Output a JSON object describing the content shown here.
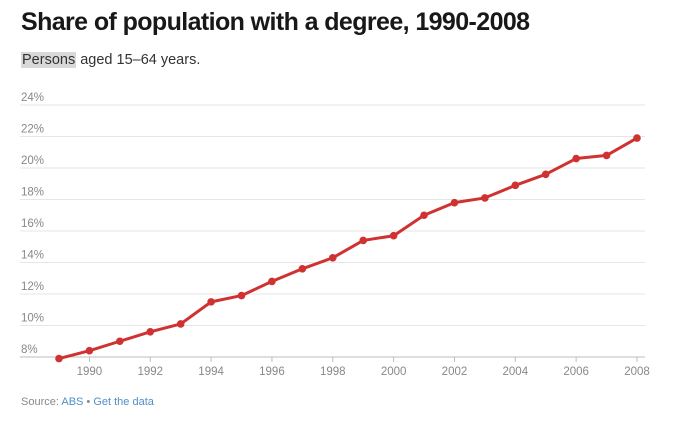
{
  "title": "Share of population with a degree, 1990-2008",
  "subtitle": {
    "highlight": "Persons",
    "rest": " aged 15–64 years."
  },
  "footer": {
    "source_prefix": "Source: ",
    "source_link": "ABS",
    "separator": " • ",
    "data_link": "Get the data"
  },
  "colors": {
    "line": "#d03131",
    "grid": "#e6e6e6",
    "axis": "#bdbdbd",
    "tick_text": "#888888",
    "link": "#4f8fc6"
  },
  "chart_data": {
    "type": "line",
    "title": "Share of population with a degree, 1990-2008",
    "subtitle": "Persons aged 15–64 years.",
    "xlabel": "",
    "ylabel": "",
    "x": [
      1989,
      1990,
      1991,
      1992,
      1993,
      1994,
      1995,
      1996,
      1997,
      1998,
      1999,
      2000,
      2001,
      2002,
      2003,
      2004,
      2005,
      2006,
      2007,
      2008
    ],
    "series": [
      {
        "name": "Persons",
        "values": [
          7.9,
          8.4,
          9.0,
          9.6,
          10.1,
          11.5,
          11.9,
          12.8,
          13.6,
          14.3,
          15.4,
          15.7,
          17.0,
          17.8,
          18.1,
          18.9,
          19.6,
          20.6,
          20.8,
          21.9
        ]
      }
    ],
    "xlim": [
      1989,
      2008
    ],
    "ylim": [
      8,
      24
    ],
    "x_ticks": [
      1990,
      1992,
      1994,
      1996,
      1998,
      2000,
      2002,
      2004,
      2006,
      2008
    ],
    "y_ticks": [
      8,
      10,
      12,
      14,
      16,
      18,
      20,
      22,
      24
    ],
    "y_tick_labels": [
      "8%",
      "10%",
      "12%",
      "14%",
      "16%",
      "18%",
      "20%",
      "22%",
      "24%"
    ],
    "grid": true,
    "legend": "none"
  }
}
